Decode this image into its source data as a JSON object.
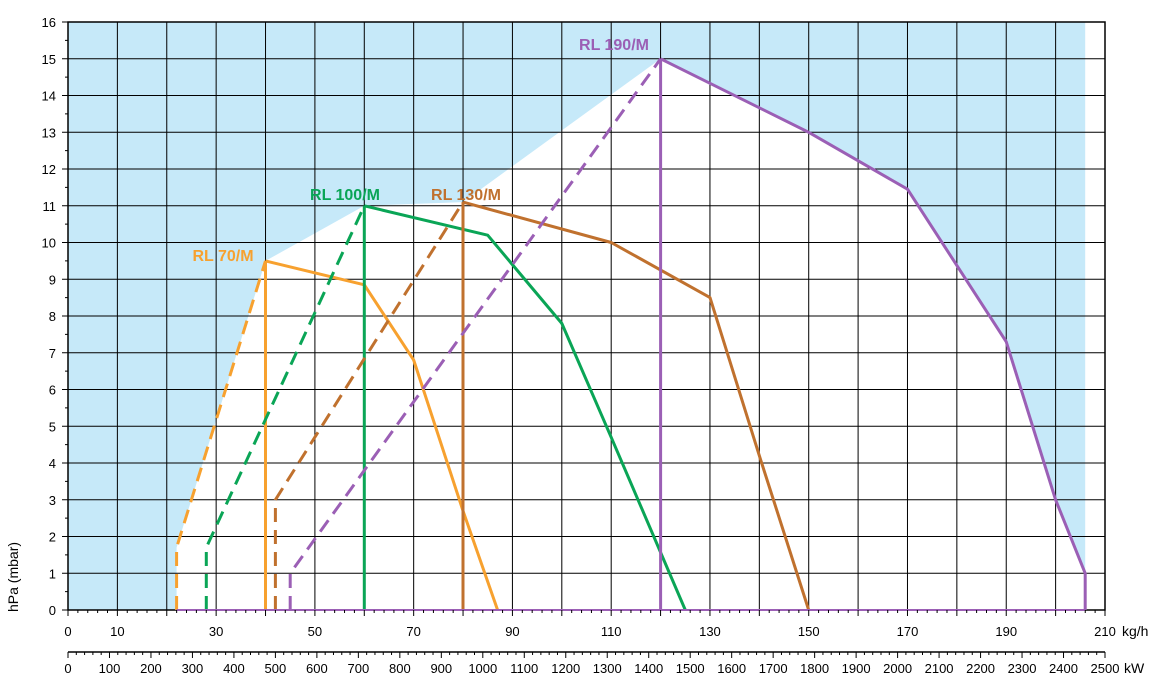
{
  "chart_data": {
    "type": "line",
    "title": "",
    "ylabel": "hPa (mbar)",
    "ylim": [
      0,
      16
    ],
    "yticks": [
      "0",
      "1",
      "2",
      "3",
      "4",
      "5",
      "6",
      "7",
      "8",
      "9",
      "10",
      "11",
      "12",
      "13",
      "14",
      "15",
      "16"
    ],
    "x_primary": {
      "unit": "kg/h",
      "xlim": [
        0,
        210
      ],
      "ticks": [
        "0",
        "10",
        "30",
        "50",
        "70",
        "90",
        "110",
        "130",
        "150",
        "170",
        "190",
        "210"
      ]
    },
    "x_secondary": {
      "unit": "kW",
      "xlim": [
        0,
        2500
      ],
      "ticks": [
        "0",
        "100",
        "200",
        "300",
        "400",
        "500",
        "600",
        "700",
        "800",
        "900",
        "1000",
        "1100",
        "1200",
        "1300",
        "1400",
        "1500",
        "1600",
        "1700",
        "1800",
        "1900",
        "2000",
        "2100",
        "2200",
        "2300",
        "2400",
        "2500"
      ]
    },
    "colors": {
      "background_fill": "#c6e9f9",
      "area_fill": "#ffffff",
      "grid": "#000000"
    },
    "series": [
      {
        "name": "RL 70/M",
        "color": "#f7a12f",
        "startup_dashed": [
          [
            22,
            0
          ],
          [
            22,
            1.7
          ],
          [
            40,
            9.5
          ]
        ],
        "peak": [
          40,
          9.5
        ],
        "curve": [
          [
            40,
            9.5
          ],
          [
            60,
            8.85
          ],
          [
            70,
            6.8
          ],
          [
            80,
            2.7
          ],
          [
            87,
            0
          ]
        ],
        "vertical": [
          [
            40,
            0
          ],
          [
            40,
            9.5
          ]
        ]
      },
      {
        "name": "RL 100/M",
        "color": "#0aa556",
        "startup_dashed": [
          [
            28,
            0
          ],
          [
            28,
            1.7
          ],
          [
            60,
            11.0
          ]
        ],
        "peak": [
          60,
          11.0
        ],
        "curve": [
          [
            60,
            11.0
          ],
          [
            85,
            10.2
          ],
          [
            100,
            7.8
          ],
          [
            110,
            4.7
          ],
          [
            125,
            0
          ]
        ],
        "vertical": [
          [
            60,
            0
          ],
          [
            60,
            11.0
          ]
        ]
      },
      {
        "name": "RL 130/M",
        "color": "#c0712e",
        "startup_dashed": [
          [
            42,
            0
          ],
          [
            42,
            3.0
          ],
          [
            80,
            11.1
          ]
        ],
        "peak": [
          80,
          11.1
        ],
        "curve": [
          [
            80,
            11.1
          ],
          [
            110,
            10.0
          ],
          [
            130,
            8.5
          ],
          [
            140,
            4.2
          ],
          [
            150,
            0
          ]
        ],
        "vertical": [
          [
            80,
            0
          ],
          [
            80,
            11.1
          ]
        ]
      },
      {
        "name": "RL 190/M",
        "color": "#9b5fb5",
        "startup_dashed": [
          [
            45,
            0
          ],
          [
            45,
            1.0
          ],
          [
            120,
            15.0
          ]
        ],
        "peak": [
          120,
          15.0
        ],
        "curve": [
          [
            120,
            15.0
          ],
          [
            150,
            13.0
          ],
          [
            170,
            11.45
          ],
          [
            190,
            7.3
          ],
          [
            200,
            3.0
          ],
          [
            206,
            1.0
          ],
          [
            206,
            0
          ]
        ],
        "vertical": [
          [
            120,
            0
          ],
          [
            120,
            15.0
          ]
        ]
      }
    ],
    "background_region": [
      [
        0,
        16
      ],
      [
        206,
        16
      ],
      [
        206,
        1.0
      ],
      [
        200,
        3.0
      ],
      [
        190,
        7.3
      ],
      [
        170,
        11.45
      ],
      [
        150,
        13.0
      ],
      [
        120,
        15.0
      ],
      [
        80,
        11.1
      ],
      [
        60,
        11.0
      ],
      [
        40,
        9.5
      ],
      [
        22,
        1.7
      ],
      [
        22,
        0
      ],
      [
        0,
        0
      ]
    ]
  }
}
